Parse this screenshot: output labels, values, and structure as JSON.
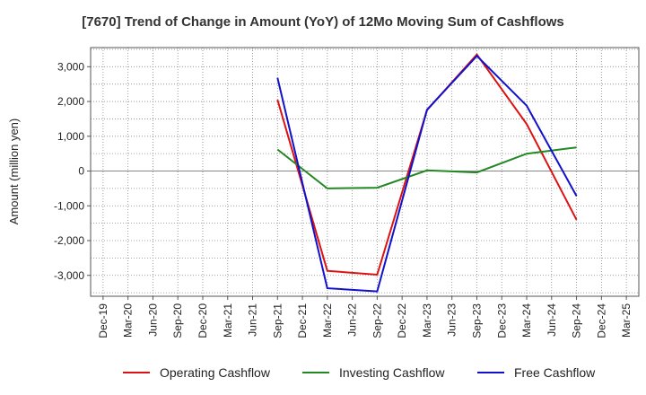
{
  "chart_data": {
    "type": "line",
    "title": "[7670]  Trend of Change in Amount (YoY) of 12Mo Moving Sum of Cashflows",
    "ylabel": "Amount (million yen)",
    "xlabel": "",
    "ylim": [
      -3600,
      3550
    ],
    "yticks": [
      -3000,
      -2000,
      -1000,
      0,
      1000,
      2000,
      3000
    ],
    "ytick_labels": [
      "-3,000",
      "-2,000",
      "-1,000",
      "0",
      "1,000",
      "2,000",
      "3,000"
    ],
    "categories": [
      "Dec-19",
      "Mar-20",
      "Jun-20",
      "Sep-20",
      "Dec-20",
      "Mar-21",
      "Jun-21",
      "Sep-21",
      "Dec-21",
      "Mar-22",
      "Jun-22",
      "Sep-22",
      "Dec-22",
      "Mar-23",
      "Jun-23",
      "Sep-23",
      "Dec-23",
      "Mar-24",
      "Jun-24",
      "Sep-24",
      "Dec-24",
      "Mar-25"
    ],
    "grid": true,
    "legend_position": "bottom",
    "series": [
      {
        "name": "Operating Cashflow",
        "color": "#dd1111",
        "values": [
          null,
          null,
          null,
          null,
          null,
          null,
          null,
          2050,
          null,
          -2870,
          null,
          -2980,
          null,
          1750,
          null,
          3350,
          null,
          1350,
          null,
          -1400,
          null,
          null
        ]
      },
      {
        "name": "Investing Cashflow",
        "color": "#228822",
        "values": [
          null,
          null,
          null,
          null,
          null,
          null,
          null,
          620,
          null,
          -500,
          null,
          -480,
          null,
          20,
          null,
          -40,
          null,
          500,
          null,
          680,
          null,
          null
        ]
      },
      {
        "name": "Free Cashflow",
        "color": "#1111cc",
        "values": [
          null,
          null,
          null,
          null,
          null,
          null,
          null,
          2680,
          null,
          -3370,
          null,
          -3460,
          null,
          1760,
          null,
          3310,
          null,
          1880,
          null,
          -720,
          null,
          null
        ]
      }
    ]
  }
}
